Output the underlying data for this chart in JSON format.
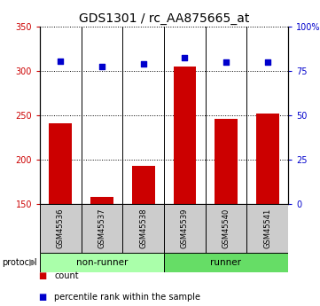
{
  "title": "GDS1301 / rc_AA875665_at",
  "samples": [
    "GSM45536",
    "GSM45537",
    "GSM45538",
    "GSM45539",
    "GSM45540",
    "GSM45541"
  ],
  "counts": [
    241,
    158,
    193,
    305,
    246,
    252
  ],
  "percentiles": [
    80.5,
    77.5,
    79.0,
    82.5,
    80.0,
    80.0
  ],
  "bar_color": "#cc0000",
  "dot_color": "#0000cc",
  "ylim_left": [
    150,
    350
  ],
  "ylim_right": [
    0,
    100
  ],
  "yticks_left": [
    150,
    200,
    250,
    300,
    350
  ],
  "yticks_right": [
    0,
    25,
    50,
    75,
    100
  ],
  "yticklabels_right": [
    "0",
    "25",
    "50",
    "75",
    "100%"
  ],
  "groups": [
    {
      "label": "non-runner",
      "indices": [
        0,
        1,
        2
      ],
      "color": "#aaffaa"
    },
    {
      "label": "runner",
      "indices": [
        3,
        4,
        5
      ],
      "color": "#66dd66"
    }
  ],
  "protocol_label": "protocol",
  "legend_items": [
    {
      "label": "count",
      "color": "#cc0000"
    },
    {
      "label": "percentile rank within the sample",
      "color": "#0000cc"
    }
  ],
  "background_color": "#ffffff",
  "sample_box_color": "#cccccc",
  "title_fontsize": 10,
  "bar_width": 0.55
}
